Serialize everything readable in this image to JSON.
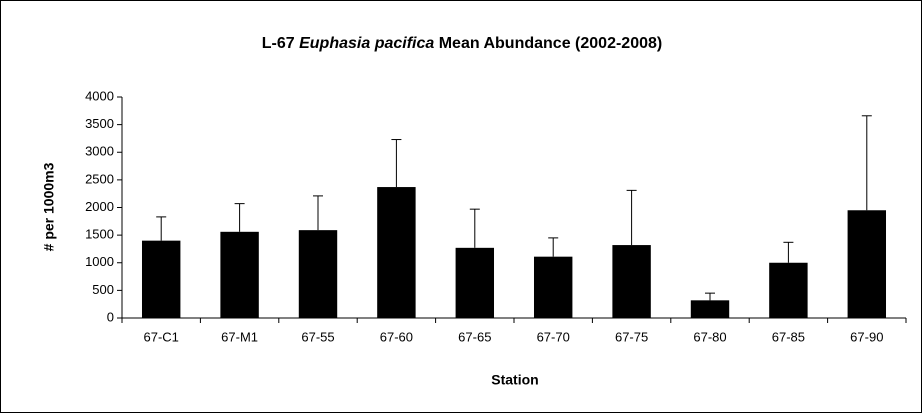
{
  "chart_data": {
    "type": "bar",
    "title": "L-67 Euphasia pacifica Mean Abundance (2002-2008)",
    "title_italic": "Euphasia pacifica",
    "x_label": "Station",
    "y_label": "# per 1000m3",
    "categories": [
      "67-C1",
      "67-M1",
      "67-55",
      "67-60",
      "67-65",
      "67-70",
      "67-75",
      "67-80",
      "67-85",
      "67-90"
    ],
    "values": [
      1400,
      1560,
      1590,
      2370,
      1270,
      1110,
      1320,
      320,
      1000,
      1950
    ],
    "errors": [
      430,
      510,
      620,
      860,
      700,
      340,
      990,
      130,
      370,
      1710
    ],
    "color": "#000000",
    "ylim": [
      0,
      4000
    ],
    "yticks": [
      0,
      500,
      1000,
      1500,
      2000,
      2500,
      3000,
      3500,
      4000
    ],
    "grid": false
  }
}
